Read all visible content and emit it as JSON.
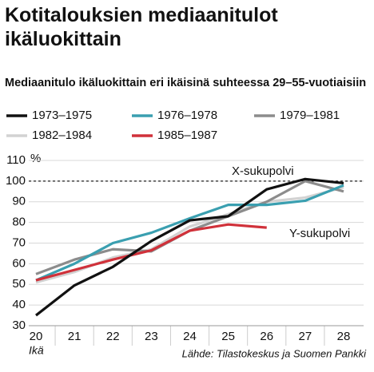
{
  "chart_data": {
    "type": "line",
    "title": "Kotitalouksien mediaanitulot ikäluokittain",
    "subtitle": "Mediaanitulo ikäluokittain eri ikäisinä suhteessa 29–55-vuotiaisiin",
    "y_label": "%",
    "x_label": "Ikä",
    "source": "Lähde: Tilastokeskus ja Suomen Pankki",
    "annotations": [
      "X-sukupolvi",
      "Y-sukupolvi"
    ],
    "reference_line": 100,
    "categories": [
      20,
      21,
      22,
      23,
      24,
      25,
      26,
      27,
      28
    ],
    "series": [
      {
        "name": "1973–1975",
        "color": "#111111",
        "values": [
          35,
          49.5,
          58.5,
          71,
          81,
          83,
          96,
          101,
          99
        ]
      },
      {
        "name": "1976–1978",
        "color": "#3a9fb0",
        "values": [
          52,
          60,
          70,
          75,
          82,
          88.5,
          88.5,
          90.5,
          98
        ]
      },
      {
        "name": "1979–1981",
        "color": "#8c8c8c",
        "values": [
          55,
          62,
          67,
          66,
          76,
          83,
          90,
          100,
          95
        ]
      },
      {
        "name": "1982–1984",
        "color": "#d2d2d2",
        "values": [
          51,
          56,
          63,
          67,
          78,
          84,
          90,
          92,
          97
        ]
      },
      {
        "name": "1985–1987",
        "color": "#d0313a",
        "values": [
          52,
          57,
          62,
          66.5,
          76,
          79,
          77.5,
          null,
          null
        ]
      }
    ],
    "ylim": [
      30,
      110
    ],
    "yticks": [
      30,
      40,
      50,
      60,
      70,
      80,
      90,
      100,
      110
    ],
    "grid": true
  }
}
